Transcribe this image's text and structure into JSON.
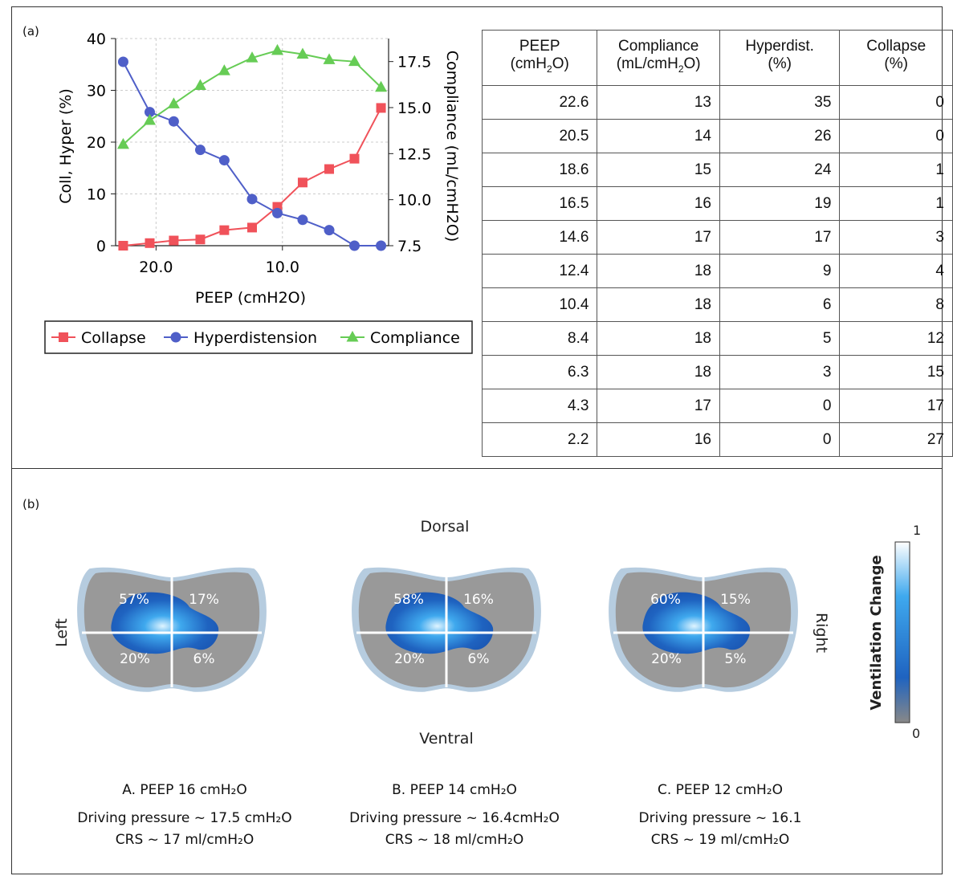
{
  "panel_a_label": "(a)",
  "panel_b_label": "(b)",
  "chart_data": {
    "type": "line",
    "xlabel": "PEEP (cmH2O)",
    "ylabel": "Coll, Hyper (%)",
    "y2label": "Compliance (mL/cmH2O)",
    "x": [
      22.6,
      20.5,
      18.6,
      16.5,
      14.6,
      12.4,
      10.4,
      8.4,
      6.3,
      4.3,
      2.2
    ],
    "xlim": [
      23.2,
      1.6
    ],
    "xticks": [
      "20.0",
      "10.0"
    ],
    "ylim": [
      0,
      40
    ],
    "yticks": [
      "0",
      "10",
      "20",
      "30",
      "40"
    ],
    "y2lim": [
      7.5,
      18.75
    ],
    "y2ticks": [
      "7.5",
      "10.0",
      "12.5",
      "15.0",
      "17.5"
    ],
    "grid": true,
    "legend_position": "bottom",
    "series": [
      {
        "name": "Collapse",
        "axis": "left",
        "color": "#f0525a",
        "marker": "square",
        "values": [
          0,
          0.5,
          1,
          1.2,
          3,
          3.5,
          7.5,
          12.2,
          14.8,
          16.8,
          26.6
        ]
      },
      {
        "name": "Hyperdistension",
        "axis": "left",
        "color": "#4f5fc8",
        "marker": "circle",
        "values": [
          35.5,
          25.8,
          24,
          18.5,
          16.5,
          9,
          6.3,
          5,
          3,
          0,
          0
        ]
      },
      {
        "name": "Compliance",
        "axis": "right",
        "color": "#66cc55",
        "marker": "triangle",
        "values": [
          13,
          14.3,
          15.2,
          16.2,
          17,
          17.7,
          18.1,
          17.9,
          17.6,
          17.5,
          16.1
        ]
      }
    ]
  },
  "table": {
    "headers": [
      {
        "line1": "PEEP",
        "line2": "(cmH",
        "sub": "2",
        "tail": "O)"
      },
      {
        "line1": "Compliance",
        "line2": "(mL/cmH",
        "sub": "2",
        "tail": "O)"
      },
      {
        "line1": "Hyperdist.",
        "line2": "(%)",
        "sub": "",
        "tail": ""
      },
      {
        "line1": "Collapse",
        "line2": "(%)",
        "sub": "",
        "tail": ""
      }
    ],
    "rows": [
      [
        "22.6",
        "13",
        "35",
        "0"
      ],
      [
        "20.5",
        "14",
        "26",
        "0"
      ],
      [
        "18.6",
        "15",
        "24",
        "1"
      ],
      [
        "16.5",
        "16",
        "19",
        "1"
      ],
      [
        "14.6",
        "17",
        "17",
        "3"
      ],
      [
        "12.4",
        "18",
        "9",
        "4"
      ],
      [
        "10.4",
        "18",
        "6",
        "8"
      ],
      [
        "8.4",
        "18",
        "5",
        "12"
      ],
      [
        "6.3",
        "18",
        "3",
        "15"
      ],
      [
        "4.3",
        "17",
        "0",
        "17"
      ],
      [
        "2.2",
        "16",
        "0",
        "27"
      ]
    ]
  },
  "eit": {
    "dorsal": "Dorsal",
    "ventral": "Ventral",
    "left": "Left",
    "right": "Right",
    "scale_title": "Ventilation Change",
    "scale_max": "1",
    "scale_min": "0",
    "scale_colors": [
      "#ffffff",
      "#3fa9ee",
      "#1f63c0",
      "#888888"
    ],
    "panels": [
      {
        "q": [
          "57%",
          "17%",
          "20%",
          "6%"
        ],
        "title": "A. PEEP 16 cmH₂O",
        "dp": "Driving pressure ~ 17.5 cmH₂O",
        "crs": "CRS ~ 17 ml/cmH₂O"
      },
      {
        "q": [
          "58%",
          "16%",
          "20%",
          "6%"
        ],
        "title": "B. PEEP 14 cmH₂O",
        "dp": "Driving pressure ~ 16.4cmH₂O",
        "crs": "CRS ~ 18 ml/cmH₂O"
      },
      {
        "q": [
          "60%",
          "15%",
          "20%",
          "5%"
        ],
        "title": "C. PEEP 12 cmH₂O",
        "dp": "Driving pressure ~ 16.1",
        "crs": "CRS ~ 19 ml/cmH₂O"
      }
    ]
  }
}
